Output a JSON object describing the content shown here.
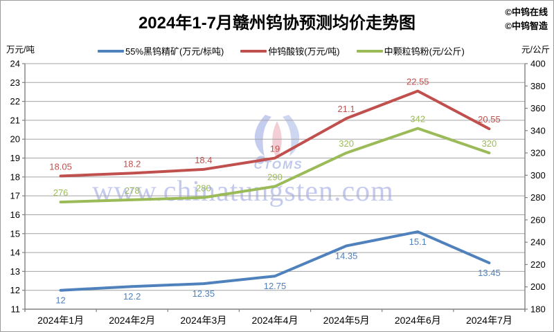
{
  "header": {
    "title": "2024年1-7月赣州钨协预测均价走势图",
    "credits": {
      "line1": "©中钨在线",
      "line2": "©中钨智造"
    }
  },
  "watermark": {
    "text": "www.chinatungsten.com",
    "logo_text": "CTOMS"
  },
  "colors": {
    "grid": "#a3a3a3",
    "axis": "#808080",
    "text": "#000000"
  },
  "chart_data": {
    "type": "line",
    "title": "2024年1-7月赣州钨协预测均价走势图",
    "categories": [
      "2024年1月",
      "2024年2月",
      "2024年3月",
      "2024年4月",
      "2024年5月",
      "2024年6月",
      "2024年7月"
    ],
    "series": [
      {
        "name": "55%黑钨精矿(万元/标吨)",
        "axis": "left",
        "color": "#4F81BD",
        "label_position": "below",
        "values": [
          12,
          12.2,
          12.35,
          12.75,
          14.35,
          15.1,
          13.45
        ]
      },
      {
        "name": "仲钨酸铵(万元/吨)",
        "axis": "left",
        "color": "#C0504D",
        "label_position": "above",
        "values": [
          18.05,
          18.2,
          18.4,
          19,
          21.1,
          22.55,
          20.55
        ]
      },
      {
        "name": "中颗粒钨粉(元/公斤)",
        "axis": "right",
        "color": "#9BBB59",
        "label_position": "above",
        "values": [
          276,
          278,
          280,
          290,
          320,
          342,
          320
        ]
      }
    ],
    "left_axis": {
      "label": "万元/吨",
      "min": 11,
      "max": 24,
      "step": 1
    },
    "right_axis": {
      "label": "元/公斤",
      "min": 180,
      "max": 400,
      "step": 20
    },
    "grid": true,
    "legend_position": "top"
  }
}
